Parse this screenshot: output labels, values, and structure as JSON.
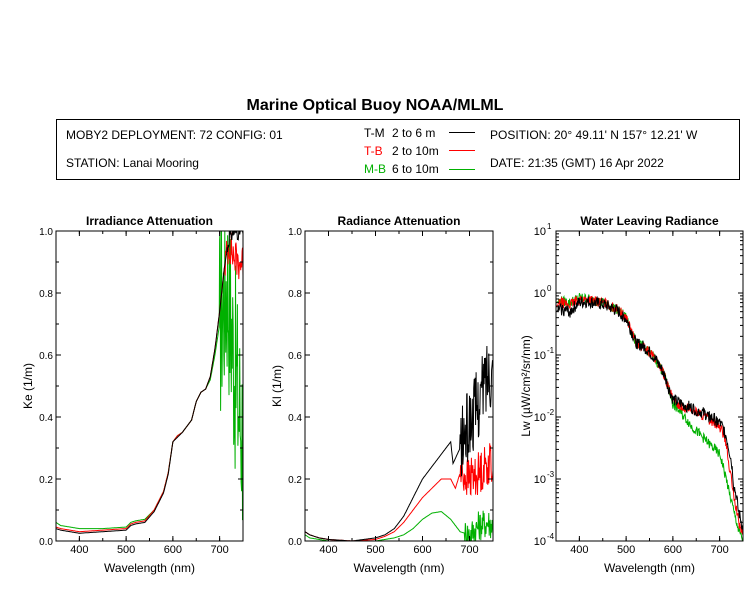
{
  "header": {
    "title": "Marine Optical Buoy NOAA/MLML",
    "deployment": "MOBY2 DEPLOYMENT: 72 CONFIG: 01",
    "station": "STATION: Lanai Mooring",
    "position": "POSITION: 20° 49.11' N   157° 12.21' W",
    "date": "DATE: 21:35 (GMT) 16 Apr 2022"
  },
  "legend": [
    {
      "code": "T-M",
      "range": "2 to 6  m",
      "color": "#000000"
    },
    {
      "code": "T-B",
      "range": "2 to 10m",
      "color": "#ff0000"
    },
    {
      "code": "M-B",
      "range": "6 to 10m",
      "color": "#00b000"
    }
  ],
  "chart_data": [
    {
      "type": "line",
      "title": "Irradiance Attenuation",
      "xlabel": "Wavelength (nm)",
      "ylabel": "Ke  (1/m)",
      "xlim": [
        350,
        750
      ],
      "ylim": [
        0,
        1.0
      ],
      "xticks": [
        "400",
        "500",
        "600",
        "700"
      ],
      "yticks": [
        "0.0",
        "0.2",
        "0.4",
        "0.6",
        "0.8",
        "1.0"
      ],
      "series": [
        {
          "name": "M-B",
          "color": "#00b000",
          "noise_start": 700,
          "noise_amp": 0.35,
          "points": [
            [
              350,
              0.06
            ],
            [
              360,
              0.05
            ],
            [
              380,
              0.045
            ],
            [
              400,
              0.04
            ],
            [
              450,
              0.04
            ],
            [
              500,
              0.045
            ],
            [
              510,
              0.06
            ],
            [
              520,
              0.065
            ],
            [
              540,
              0.07
            ],
            [
              560,
              0.1
            ],
            [
              580,
              0.16
            ],
            [
              590,
              0.22
            ],
            [
              600,
              0.32
            ],
            [
              610,
              0.34
            ],
            [
              620,
              0.35
            ],
            [
              640,
              0.39
            ],
            [
              650,
              0.45
            ],
            [
              660,
              0.48
            ],
            [
              670,
              0.49
            ],
            [
              680,
              0.52
            ],
            [
              690,
              0.6
            ],
            [
              700,
              0.7
            ],
            [
              710,
              0.8
            ],
            [
              715,
              0.85
            ],
            [
              720,
              0.8
            ],
            [
              725,
              0.7
            ],
            [
              730,
              0.6
            ],
            [
              740,
              0.45
            ],
            [
              750,
              0.35
            ]
          ]
        },
        {
          "name": "T-B",
          "color": "#ff0000",
          "noise_start": 712,
          "noise_amp": 0.06,
          "points": [
            [
              350,
              0.045
            ],
            [
              360,
              0.04
            ],
            [
              380,
              0.035
            ],
            [
              400,
              0.03
            ],
            [
              450,
              0.035
            ],
            [
              500,
              0.04
            ],
            [
              510,
              0.055
            ],
            [
              520,
              0.06
            ],
            [
              540,
              0.065
            ],
            [
              560,
              0.1
            ],
            [
              580,
              0.16
            ],
            [
              590,
              0.22
            ],
            [
              600,
              0.32
            ],
            [
              610,
              0.34
            ],
            [
              620,
              0.35
            ],
            [
              640,
              0.39
            ],
            [
              650,
              0.45
            ],
            [
              660,
              0.48
            ],
            [
              670,
              0.49
            ],
            [
              680,
              0.53
            ],
            [
              690,
              0.62
            ],
            [
              700,
              0.74
            ],
            [
              710,
              0.88
            ],
            [
              720,
              0.96
            ],
            [
              730,
              0.92
            ],
            [
              740,
              0.9
            ],
            [
              750,
              0.9
            ]
          ]
        },
        {
          "name": "T-M",
          "color": "#000000",
          "noise_start": 715,
          "noise_amp": 0.03,
          "points": [
            [
              350,
              0.04
            ],
            [
              360,
              0.035
            ],
            [
              380,
              0.03
            ],
            [
              400,
              0.025
            ],
            [
              450,
              0.03
            ],
            [
              500,
              0.035
            ],
            [
              510,
              0.05
            ],
            [
              520,
              0.055
            ],
            [
              540,
              0.06
            ],
            [
              560,
              0.095
            ],
            [
              580,
              0.155
            ],
            [
              590,
              0.215
            ],
            [
              600,
              0.32
            ],
            [
              610,
              0.335
            ],
            [
              620,
              0.35
            ],
            [
              640,
              0.39
            ],
            [
              650,
              0.45
            ],
            [
              660,
              0.48
            ],
            [
              670,
              0.49
            ],
            [
              680,
              0.53
            ],
            [
              690,
              0.62
            ],
            [
              700,
              0.74
            ],
            [
              710,
              0.88
            ],
            [
              720,
              0.98
            ],
            [
              730,
              1.0
            ],
            [
              740,
              1.0
            ],
            [
              750,
              1.0
            ]
          ]
        }
      ]
    },
    {
      "type": "line",
      "title": "Radiance Attenuation",
      "xlabel": "Wavelength (nm)",
      "ylabel": "Kl  (1/m)",
      "xlim": [
        350,
        750
      ],
      "ylim": [
        0,
        1.0
      ],
      "xticks": [
        "400",
        "500",
        "600",
        "700"
      ],
      "yticks": [
        "0.0",
        "0.2",
        "0.4",
        "0.6",
        "0.8",
        "1.0"
      ],
      "series": [
        {
          "name": "M-B",
          "color": "#00b000",
          "noise_start": 690,
          "noise_amp": 0.05,
          "points": [
            [
              350,
              0.02
            ],
            [
              360,
              0.01
            ],
            [
              380,
              0.005
            ],
            [
              400,
              0.0
            ],
            [
              450,
              0.0
            ],
            [
              500,
              0.0
            ],
            [
              520,
              0.005
            ],
            [
              540,
              0.01
            ],
            [
              560,
              0.02
            ],
            [
              580,
              0.04
            ],
            [
              600,
              0.07
            ],
            [
              620,
              0.09
            ],
            [
              640,
              0.095
            ],
            [
              660,
              0.07
            ],
            [
              680,
              0.03
            ],
            [
              700,
              0.02
            ],
            [
              720,
              0.05
            ],
            [
              740,
              0.06
            ],
            [
              750,
              0.05
            ]
          ]
        },
        {
          "name": "T-B",
          "color": "#ff0000",
          "noise_start": 680,
          "noise_amp": 0.07,
          "points": [
            [
              350,
              0.03
            ],
            [
              360,
              0.02
            ],
            [
              380,
              0.01
            ],
            [
              400,
              0.005
            ],
            [
              450,
              0.0
            ],
            [
              500,
              0.005
            ],
            [
              520,
              0.015
            ],
            [
              540,
              0.03
            ],
            [
              560,
              0.06
            ],
            [
              580,
              0.1
            ],
            [
              600,
              0.14
            ],
            [
              620,
              0.17
            ],
            [
              640,
              0.2
            ],
            [
              660,
              0.2
            ],
            [
              670,
              0.17
            ],
            [
              680,
              0.22
            ],
            [
              700,
              0.2
            ],
            [
              720,
              0.22
            ],
            [
              740,
              0.25
            ],
            [
              750,
              0.25
            ]
          ]
        },
        {
          "name": "T-M",
          "color": "#000000",
          "noise_start": 680,
          "noise_amp": 0.12,
          "points": [
            [
              350,
              0.03
            ],
            [
              360,
              0.02
            ],
            [
              380,
              0.01
            ],
            [
              400,
              0.005
            ],
            [
              450,
              0.0
            ],
            [
              500,
              0.01
            ],
            [
              520,
              0.02
            ],
            [
              540,
              0.04
            ],
            [
              560,
              0.08
            ],
            [
              580,
              0.14
            ],
            [
              600,
              0.2
            ],
            [
              620,
              0.24
            ],
            [
              640,
              0.28
            ],
            [
              660,
              0.32
            ],
            [
              665,
              0.25
            ],
            [
              680,
              0.3
            ],
            [
              700,
              0.38
            ],
            [
              720,
              0.45
            ],
            [
              740,
              0.55
            ],
            [
              750,
              0.55
            ]
          ]
        }
      ]
    },
    {
      "type": "line",
      "title": "Water Leaving Radiance",
      "xlabel": "Wavelength (nm)",
      "ylabel": "Lw  (µW/cm²/sr/nm)",
      "xlim": [
        350,
        750
      ],
      "ylim": [
        0.0001,
        10
      ],
      "yscale": "log",
      "xticks": [
        "400",
        "500",
        "600",
        "700"
      ],
      "yticks": [
        "10-4",
        "10-3",
        "10-2",
        "10-1",
        "100",
        "101"
      ],
      "series": [
        {
          "name": "M-B",
          "color": "#00b000",
          "noise_start": 355,
          "noise_amp": 0.08,
          "log_noise": true,
          "points": [
            [
              350,
              0.7
            ],
            [
              360,
              0.75
            ],
            [
              380,
              0.7
            ],
            [
              400,
              0.85
            ],
            [
              420,
              0.8
            ],
            [
              450,
              0.7
            ],
            [
              480,
              0.55
            ],
            [
              500,
              0.4
            ],
            [
              510,
              0.25
            ],
            [
              520,
              0.16
            ],
            [
              540,
              0.13
            ],
            [
              560,
              0.09
            ],
            [
              580,
              0.05
            ],
            [
              590,
              0.03
            ],
            [
              600,
              0.016
            ],
            [
              620,
              0.011
            ],
            [
              640,
              0.007
            ],
            [
              660,
              0.005
            ],
            [
              680,
              0.0035
            ],
            [
              700,
              0.0025
            ],
            [
              710,
              0.0013
            ],
            [
              720,
              0.0006
            ],
            [
              730,
              0.0003
            ],
            [
              740,
              0.00015
            ],
            [
              750,
              0.0001
            ]
          ]
        },
        {
          "name": "T-B",
          "color": "#ff0000",
          "noise_start": 355,
          "noise_amp": 0.08,
          "log_noise": true,
          "points": [
            [
              350,
              0.6
            ],
            [
              360,
              0.7
            ],
            [
              380,
              0.65
            ],
            [
              400,
              0.8
            ],
            [
              420,
              0.78
            ],
            [
              450,
              0.7
            ],
            [
              480,
              0.55
            ],
            [
              500,
              0.4
            ],
            [
              510,
              0.25
            ],
            [
              520,
              0.16
            ],
            [
              540,
              0.13
            ],
            [
              560,
              0.09
            ],
            [
              580,
              0.05
            ],
            [
              590,
              0.03
            ],
            [
              600,
              0.018
            ],
            [
              620,
              0.015
            ],
            [
              640,
              0.013
            ],
            [
              660,
              0.011
            ],
            [
              680,
              0.009
            ],
            [
              700,
              0.007
            ],
            [
              710,
              0.005
            ],
            [
              720,
              0.0015
            ],
            [
              730,
              0.0005
            ],
            [
              740,
              0.0002
            ],
            [
              750,
              0.00012
            ]
          ]
        },
        {
          "name": "T-M",
          "color": "#000000",
          "noise_start": 355,
          "noise_amp": 0.1,
          "log_noise": true,
          "points": [
            [
              350,
              0.5
            ],
            [
              360,
              0.55
            ],
            [
              380,
              0.5
            ],
            [
              400,
              0.7
            ],
            [
              420,
              0.72
            ],
            [
              450,
              0.65
            ],
            [
              480,
              0.52
            ],
            [
              500,
              0.38
            ],
            [
              510,
              0.25
            ],
            [
              520,
              0.16
            ],
            [
              540,
              0.13
            ],
            [
              560,
              0.09
            ],
            [
              580,
              0.05
            ],
            [
              590,
              0.03
            ],
            [
              600,
              0.019
            ],
            [
              620,
              0.016
            ],
            [
              640,
              0.014
            ],
            [
              660,
              0.012
            ],
            [
              680,
              0.01
            ],
            [
              700,
              0.008
            ],
            [
              710,
              0.006
            ],
            [
              720,
              0.003
            ],
            [
              730,
              0.0008
            ],
            [
              740,
              0.0003
            ],
            [
              750,
              0.00015
            ]
          ]
        }
      ]
    }
  ]
}
